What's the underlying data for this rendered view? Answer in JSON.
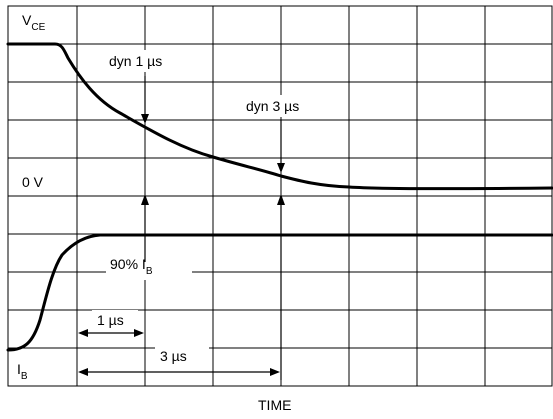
{
  "labels": {
    "vce_main": "V",
    "vce_sub": "CE",
    "ib_main": "I",
    "ib_sub": "B",
    "zero_v": "0 V",
    "dyn1": "dyn 1 µs",
    "dyn3": "dyn 3 µs",
    "ib90_main": "90% I",
    "ib90_sub": "B",
    "t1": "1 µs",
    "t3": "3 µs",
    "time": "TIME"
  }
}
